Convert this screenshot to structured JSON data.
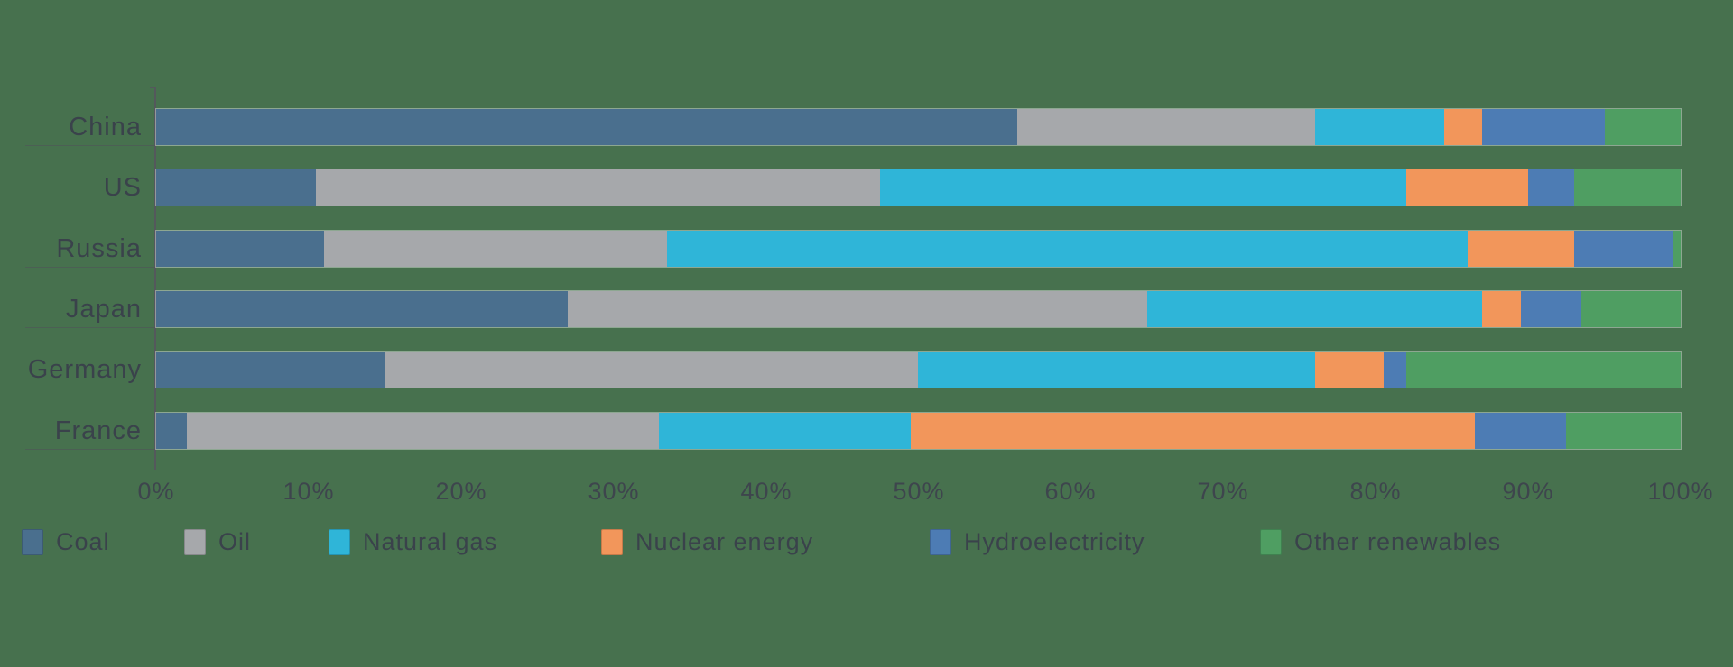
{
  "background_color": "#47714E",
  "text_color": "#3A424B",
  "axis_color": "#54585C",
  "chart_data": {
    "type": "bar",
    "orientation": "horizontal",
    "stacked": true,
    "unit": "percent",
    "title": "",
    "xlabel": "",
    "ylabel": "",
    "grid": false,
    "legend_position": "bottom",
    "categories": [
      "China",
      "US",
      "Russia",
      "Japan",
      "Germany",
      "France"
    ],
    "series": [
      {
        "name": "Coal",
        "color": "#4A6F8E",
        "values": [
          56.5,
          10.5,
          11.0,
          27.0,
          15.0,
          2.0
        ]
      },
      {
        "name": "Oil",
        "color": "#A6A8AB",
        "values": [
          19.5,
          37.0,
          22.5,
          38.0,
          35.0,
          31.0
        ]
      },
      {
        "name": "Natural gas",
        "color": "#2FB5D8",
        "values": [
          8.5,
          34.5,
          52.5,
          22.0,
          26.0,
          16.5
        ]
      },
      {
        "name": "Nuclear energy",
        "color": "#F2965B",
        "values": [
          2.5,
          8.0,
          7.0,
          2.5,
          4.5,
          37.0
        ]
      },
      {
        "name": "Hydroelectricity",
        "color": "#4D7CB4",
        "values": [
          8.0,
          3.0,
          6.5,
          4.0,
          1.5,
          6.0
        ]
      },
      {
        "name": "Other renewables",
        "color": "#4F9E62",
        "values": [
          5.0,
          7.0,
          0.5,
          6.5,
          18.0,
          7.5
        ]
      }
    ],
    "x_axis": {
      "min": 0,
      "max": 100,
      "tick_labels": [
        "0%",
        "10%",
        "20%",
        "30%",
        "40%",
        "50%",
        "60%",
        "70%",
        "80%",
        "90%",
        "100%"
      ]
    }
  }
}
